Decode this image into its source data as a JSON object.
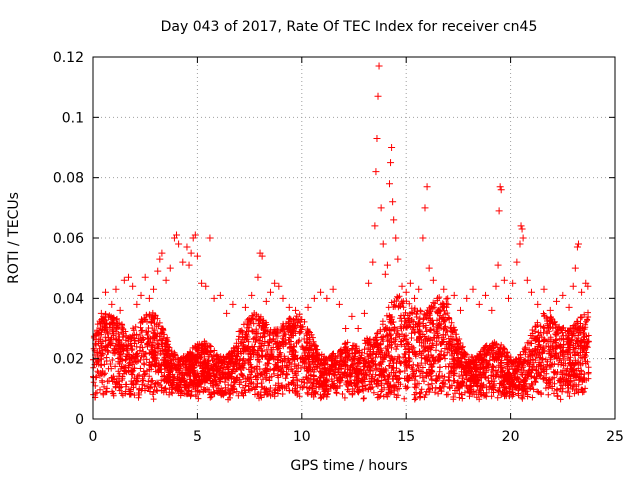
{
  "chart_data": {
    "type": "scatter",
    "title": "Day 043 of 2017, Rate Of TEC Index for receiver cn45",
    "xlabel": "GPS time / hours",
    "ylabel": "ROTI / TECUs",
    "xlim": [
      0,
      25
    ],
    "ylim": [
      0,
      0.12
    ],
    "xticks": [
      0,
      5,
      10,
      15,
      20,
      25
    ],
    "xtick_labels": [
      "0",
      "5",
      "10",
      "15",
      "20",
      "25"
    ],
    "yticks": [
      0,
      0.02,
      0.04,
      0.06,
      0.08,
      0.1,
      0.12
    ],
    "ytick_labels": [
      "0",
      "0.02",
      "0.04",
      "0.06",
      "0.08",
      "0.1",
      "0.12"
    ],
    "grid": true,
    "marker": "+",
    "series": [
      {
        "name": "ROTI",
        "color": "#ff0000",
        "points": [
          [
            0.2,
            0.022
          ],
          [
            0.4,
            0.035
          ],
          [
            0.6,
            0.042
          ],
          [
            0.9,
            0.038
          ],
          [
            1.1,
            0.043
          ],
          [
            1.3,
            0.036
          ],
          [
            1.5,
            0.046
          ],
          [
            1.7,
            0.047
          ],
          [
            1.9,
            0.044
          ],
          [
            2.1,
            0.038
          ],
          [
            2.3,
            0.041
          ],
          [
            2.5,
            0.047
          ],
          [
            2.7,
            0.04
          ],
          [
            2.9,
            0.043
          ],
          [
            3.1,
            0.049
          ],
          [
            3.2,
            0.053
          ],
          [
            3.3,
            0.055
          ],
          [
            3.5,
            0.046
          ],
          [
            3.7,
            0.05
          ],
          [
            3.9,
            0.06
          ],
          [
            4.0,
            0.061
          ],
          [
            4.1,
            0.058
          ],
          [
            4.3,
            0.052
          ],
          [
            4.5,
            0.057
          ],
          [
            4.6,
            0.051
          ],
          [
            4.7,
            0.055
          ],
          [
            4.8,
            0.06
          ],
          [
            4.9,
            0.061
          ],
          [
            5.0,
            0.054
          ],
          [
            5.2,
            0.045
          ],
          [
            5.4,
            0.044
          ],
          [
            5.6,
            0.06
          ],
          [
            5.8,
            0.04
          ],
          [
            6.1,
            0.041
          ],
          [
            6.4,
            0.035
          ],
          [
            6.7,
            0.038
          ],
          [
            7.0,
            0.029
          ],
          [
            7.3,
            0.037
          ],
          [
            7.6,
            0.041
          ],
          [
            7.9,
            0.047
          ],
          [
            8.0,
            0.055
          ],
          [
            8.1,
            0.054
          ],
          [
            8.3,
            0.039
          ],
          [
            8.5,
            0.042
          ],
          [
            8.7,
            0.045
          ],
          [
            8.9,
            0.044
          ],
          [
            9.1,
            0.04
          ],
          [
            9.4,
            0.037
          ],
          [
            9.7,
            0.036
          ],
          [
            10.0,
            0.033
          ],
          [
            10.3,
            0.037
          ],
          [
            10.6,
            0.04
          ],
          [
            10.9,
            0.042
          ],
          [
            11.2,
            0.04
          ],
          [
            11.5,
            0.043
          ],
          [
            11.8,
            0.038
          ],
          [
            12.1,
            0.03
          ],
          [
            12.4,
            0.034
          ],
          [
            12.7,
            0.03
          ],
          [
            13.0,
            0.035
          ],
          [
            13.2,
            0.045
          ],
          [
            13.4,
            0.052
          ],
          [
            13.5,
            0.064
          ],
          [
            13.55,
            0.082
          ],
          [
            13.6,
            0.093
          ],
          [
            13.65,
            0.107
          ],
          [
            13.7,
            0.117
          ],
          [
            13.8,
            0.07
          ],
          [
            13.9,
            0.058
          ],
          [
            14.0,
            0.048
          ],
          [
            14.1,
            0.051
          ],
          [
            14.2,
            0.078
          ],
          [
            14.25,
            0.085
          ],
          [
            14.3,
            0.09
          ],
          [
            14.35,
            0.072
          ],
          [
            14.4,
            0.066
          ],
          [
            14.5,
            0.06
          ],
          [
            14.6,
            0.053
          ],
          [
            14.8,
            0.044
          ],
          [
            15.0,
            0.042
          ],
          [
            15.2,
            0.045
          ],
          [
            15.4,
            0.04
          ],
          [
            15.6,
            0.043
          ],
          [
            15.8,
            0.06
          ],
          [
            15.9,
            0.07
          ],
          [
            16.0,
            0.077
          ],
          [
            16.1,
            0.05
          ],
          [
            16.3,
            0.046
          ],
          [
            16.5,
            0.04
          ],
          [
            16.8,
            0.043
          ],
          [
            17.0,
            0.038
          ],
          [
            17.3,
            0.041
          ],
          [
            17.6,
            0.036
          ],
          [
            17.9,
            0.04
          ],
          [
            18.2,
            0.043
          ],
          [
            18.5,
            0.038
          ],
          [
            18.8,
            0.041
          ],
          [
            19.1,
            0.036
          ],
          [
            19.3,
            0.044
          ],
          [
            19.4,
            0.051
          ],
          [
            19.45,
            0.069
          ],
          [
            19.5,
            0.077
          ],
          [
            19.55,
            0.076
          ],
          [
            19.7,
            0.046
          ],
          [
            19.9,
            0.04
          ],
          [
            20.1,
            0.045
          ],
          [
            20.3,
            0.052
          ],
          [
            20.45,
            0.058
          ],
          [
            20.5,
            0.064
          ],
          [
            20.55,
            0.063
          ],
          [
            20.6,
            0.06
          ],
          [
            20.8,
            0.046
          ],
          [
            21.0,
            0.042
          ],
          [
            21.3,
            0.038
          ],
          [
            21.6,
            0.043
          ],
          [
            21.9,
            0.036
          ],
          [
            22.2,
            0.039
          ],
          [
            22.5,
            0.041
          ],
          [
            22.8,
            0.037
          ],
          [
            23.0,
            0.044
          ],
          [
            23.1,
            0.05
          ],
          [
            23.2,
            0.057
          ],
          [
            23.25,
            0.058
          ],
          [
            23.4,
            0.042
          ],
          [
            23.6,
            0.045
          ],
          [
            23.7,
            0.044
          ]
        ]
      }
    ]
  }
}
